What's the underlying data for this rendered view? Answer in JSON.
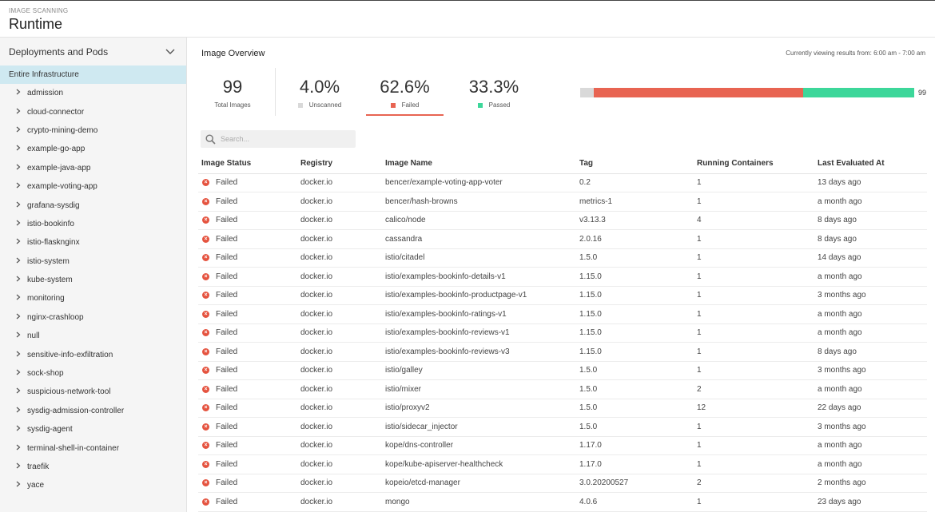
{
  "header": {
    "eyebrow": "IMAGE SCANNING",
    "title": "Runtime"
  },
  "sidebar": {
    "section_label": "Deployments and Pods",
    "selected": "Entire Infrastructure",
    "items": [
      "admission",
      "cloud-connector",
      "crypto-mining-demo",
      "example-go-app",
      "example-java-app",
      "example-voting-app",
      "grafana-sysdig",
      "istio-bookinfo",
      "istio-flasknginx",
      "istio-system",
      "kube-system",
      "monitoring",
      "nginx-crashloop",
      "null",
      "sensitive-info-exfiltration",
      "sock-shop",
      "suspicious-network-tool",
      "sysdig-admission-controller",
      "sysdig-agent",
      "terminal-shell-in-container",
      "traefik",
      "yace"
    ]
  },
  "overview": {
    "title": "Image Overview",
    "viewing": "Currently viewing results from: 6:00 am - 7:00 am",
    "total": {
      "value": "99",
      "label": "Total Images"
    },
    "unscanned": {
      "value": "4.0%",
      "label": "Unscanned",
      "fraction": 0.04,
      "color": "#d9d9d9"
    },
    "failed": {
      "value": "62.6%",
      "label": "Failed",
      "fraction": 0.626,
      "color": "#e86452"
    },
    "passed": {
      "value": "33.3%",
      "label": "Passed",
      "fraction": 0.333,
      "color": "#3dd79a"
    },
    "bar_count": "99"
  },
  "search": {
    "placeholder": "Search..."
  },
  "table": {
    "headers": [
      "Image Status",
      "Registry",
      "Image Name",
      "Tag",
      "Running Containers",
      "Last Evaluated At"
    ],
    "rows": [
      [
        "Failed",
        "docker.io",
        "bencer/example-voting-app-voter",
        "0.2",
        "1",
        "13 days ago"
      ],
      [
        "Failed",
        "docker.io",
        "bencer/hash-browns",
        "metrics-1",
        "1",
        "a month ago"
      ],
      [
        "Failed",
        "docker.io",
        "calico/node",
        "v3.13.3",
        "4",
        "8 days ago"
      ],
      [
        "Failed",
        "docker.io",
        "cassandra",
        "2.0.16",
        "1",
        "8 days ago"
      ],
      [
        "Failed",
        "docker.io",
        "istio/citadel",
        "1.5.0",
        "1",
        "14 days ago"
      ],
      [
        "Failed",
        "docker.io",
        "istio/examples-bookinfo-details-v1",
        "1.15.0",
        "1",
        "a month ago"
      ],
      [
        "Failed",
        "docker.io",
        "istio/examples-bookinfo-productpage-v1",
        "1.15.0",
        "1",
        "3 months ago"
      ],
      [
        "Failed",
        "docker.io",
        "istio/examples-bookinfo-ratings-v1",
        "1.15.0",
        "1",
        "a month ago"
      ],
      [
        "Failed",
        "docker.io",
        "istio/examples-bookinfo-reviews-v1",
        "1.15.0",
        "1",
        "a month ago"
      ],
      [
        "Failed",
        "docker.io",
        "istio/examples-bookinfo-reviews-v3",
        "1.15.0",
        "1",
        "8 days ago"
      ],
      [
        "Failed",
        "docker.io",
        "istio/galley",
        "1.5.0",
        "1",
        "3 months ago"
      ],
      [
        "Failed",
        "docker.io",
        "istio/mixer",
        "1.5.0",
        "2",
        "a month ago"
      ],
      [
        "Failed",
        "docker.io",
        "istio/proxyv2",
        "1.5.0",
        "12",
        "22 days ago"
      ],
      [
        "Failed",
        "docker.io",
        "istio/sidecar_injector",
        "1.5.0",
        "1",
        "3 months ago"
      ],
      [
        "Failed",
        "docker.io",
        "kope/dns-controller",
        "1.17.0",
        "1",
        "a month ago"
      ],
      [
        "Failed",
        "docker.io",
        "kope/kube-apiserver-healthcheck",
        "1.17.0",
        "1",
        "a month ago"
      ],
      [
        "Failed",
        "docker.io",
        "kopeio/etcd-manager",
        "3.0.20200527",
        "2",
        "2 months ago"
      ],
      [
        "Failed",
        "docker.io",
        "mongo",
        "4.0.6",
        "1",
        "23 days ago"
      ]
    ]
  }
}
